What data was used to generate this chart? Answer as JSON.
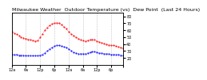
{
  "title": "Milwaukee Weather  Outdoor Temperature (vs)  Dew Point  (Last 24 Hours)",
  "temp_color": "#ff0000",
  "dew_color": "#0000ff",
  "background_color": "#ffffff",
  "grid_color": "#aaaaaa",
  "ylim": [
    10,
    85
  ],
  "xlim": [
    0,
    47
  ],
  "temp_values": [
    58,
    56,
    54,
    52,
    50,
    49,
    48,
    47,
    46,
    45,
    44,
    45,
    50,
    55,
    60,
    64,
    67,
    69,
    70,
    71,
    70,
    68,
    65,
    62,
    58,
    55,
    52,
    50,
    48,
    46,
    45,
    44,
    45,
    46,
    47,
    46,
    44,
    43,
    42,
    41,
    40,
    39,
    38,
    38,
    37,
    36,
    35,
    34
  ],
  "dew_values": [
    25,
    25,
    25,
    24,
    24,
    24,
    23,
    23,
    23,
    23,
    23,
    23,
    24,
    25,
    27,
    30,
    33,
    35,
    37,
    38,
    38,
    37,
    36,
    35,
    33,
    30,
    28,
    27,
    26,
    26,
    26,
    26,
    27,
    28,
    29,
    29,
    28,
    27,
    27,
    26,
    26,
    26,
    25,
    25,
    25,
    25,
    24,
    24
  ],
  "title_fontsize": 4.5,
  "tick_fontsize": 3.5,
  "line_linewidth": 0.5,
  "markersize": 1.0,
  "grid_x_positions": [
    0,
    6,
    12,
    18,
    24,
    30,
    36,
    42,
    47
  ],
  "x_tick_labels": [
    "12a",
    "6a",
    "12p",
    "6p",
    "12a",
    "6a",
    "12p",
    "6p",
    ""
  ],
  "y_tick_values": [
    20,
    30,
    40,
    50,
    60,
    70,
    80
  ],
  "y_tick_labels": [
    "20",
    "30",
    "40",
    "50",
    "60",
    "70",
    "80"
  ]
}
